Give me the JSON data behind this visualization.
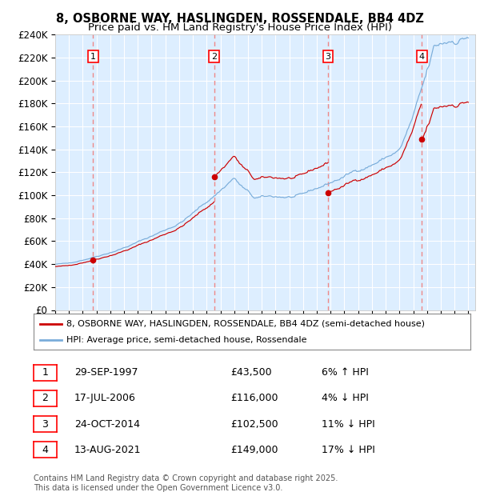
{
  "title": "8, OSBORNE WAY, HASLINGDEN, ROSSENDALE, BB4 4DZ",
  "subtitle": "Price paid vs. HM Land Registry's House Price Index (HPI)",
  "ylim": [
    0,
    240000
  ],
  "yticks": [
    0,
    20000,
    40000,
    60000,
    80000,
    100000,
    120000,
    140000,
    160000,
    180000,
    200000,
    220000,
    240000
  ],
  "ytick_labels": [
    "£0",
    "£20K",
    "£40K",
    "£60K",
    "£80K",
    "£100K",
    "£120K",
    "£140K",
    "£160K",
    "£180K",
    "£200K",
    "£220K",
    "£240K"
  ],
  "xlim_start": 1995.0,
  "xlim_end": 2025.5,
  "red_line_color": "#cc0000",
  "blue_line_color": "#7aadda",
  "dashed_line_color": "#ee8888",
  "plot_bg_color": "#ddeeff",
  "grid_color": "#ffffff",
  "sale_dates_num": [
    1997.747,
    2006.54,
    2014.815,
    2021.618
  ],
  "sale_prices": [
    43500,
    116000,
    102500,
    149000
  ],
  "sale_labels": [
    "1",
    "2",
    "3",
    "4"
  ],
  "legend_line1": "8, OSBORNE WAY, HASLINGDEN, ROSSENDALE, BB4 4DZ (semi-detached house)",
  "legend_line2": "HPI: Average price, semi-detached house, Rossendale",
  "table_rows": [
    [
      "1",
      "29-SEP-1997",
      "£43,500",
      "6% ↑ HPI"
    ],
    [
      "2",
      "17-JUL-2006",
      "£116,000",
      "4% ↓ HPI"
    ],
    [
      "3",
      "24-OCT-2014",
      "£102,500",
      "11% ↓ HPI"
    ],
    [
      "4",
      "13-AUG-2021",
      "£149,000",
      "17% ↓ HPI"
    ]
  ],
  "footer": "Contains HM Land Registry data © Crown copyright and database right 2025.\nThis data is licensed under the Open Government Licence v3.0.",
  "title_fontsize": 10.5,
  "subtitle_fontsize": 9.5,
  "tick_fontsize": 8.5,
  "legend_fontsize": 8,
  "table_fontsize": 9,
  "footer_fontsize": 7
}
